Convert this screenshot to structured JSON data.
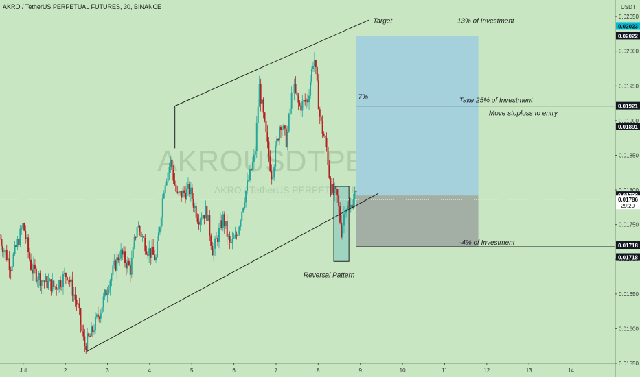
{
  "header": {
    "title": "AKRO / TetherUS PERPETUAL FUTURES, 30, BINANCE",
    "currency": "USDT",
    "watermark_main": "AKROUSDTPERP, 30",
    "watermark_sub": "AKRO / TetherUS PERPETUAL FUTURES"
  },
  "colors": {
    "background": "#c8e6c2",
    "up": "#26a69a",
    "down": "#b22222",
    "target_zone": "#a4d1dc",
    "stop_zone": "#a3afa5",
    "reversal_box": "#9fd4c0",
    "label_bg": "#131722"
  },
  "chart_data": {
    "type": "candlestick",
    "ylim": [
      0.0155,
      0.0206
    ],
    "xlim": [
      0,
      14.6
    ],
    "x_ticks": [
      {
        "x": 0.55,
        "label": "Jul"
      },
      {
        "x": 1.55,
        "label": "2"
      },
      {
        "x": 2.55,
        "label": "3"
      },
      {
        "x": 3.55,
        "label": "4"
      },
      {
        "x": 4.55,
        "label": "5"
      },
      {
        "x": 5.55,
        "label": "6"
      },
      {
        "x": 6.55,
        "label": "7"
      },
      {
        "x": 7.55,
        "label": "8"
      },
      {
        "x": 8.55,
        "label": "9"
      },
      {
        "x": 9.55,
        "label": "10"
      },
      {
        "x": 10.55,
        "label": "11"
      },
      {
        "x": 11.55,
        "label": "12"
      },
      {
        "x": 12.55,
        "label": "13"
      },
      {
        "x": 13.55,
        "label": "14"
      }
    ],
    "y_ticks": [
      "0.01550",
      "0.01600",
      "0.01650",
      "0.01700",
      "0.01750",
      "0.01800",
      "0.01850",
      "0.01900",
      "0.01950",
      "0.02000",
      "0.02050"
    ],
    "price_labels": [
      {
        "value": 0.02023,
        "label": "0.02023",
        "style": "cyan"
      },
      {
        "value": 0.02022,
        "label": "0.02022",
        "style": "dark"
      },
      {
        "value": 0.01921,
        "label": "0.01921",
        "style": "dark"
      },
      {
        "value": 0.01891,
        "label": "0.01891",
        "style": "dark"
      },
      {
        "value": 0.01792,
        "label": "0.01792",
        "style": "dark"
      },
      {
        "value": 0.01786,
        "label": "0.01786",
        "sub": "29:20",
        "style": "white"
      },
      {
        "value": 0.01718,
        "label": "0.01718",
        "style": "dark"
      },
      {
        "value": 0.017175,
        "label": "0.01718",
        "style": "dark"
      }
    ],
    "price_path": [
      [
        0.0,
        0.0173
      ],
      [
        0.25,
        0.0169
      ],
      [
        0.55,
        0.0175
      ],
      [
        0.75,
        0.01685
      ],
      [
        1.0,
        0.0167
      ],
      [
        1.3,
        0.0166
      ],
      [
        1.6,
        0.0168
      ],
      [
        1.85,
        0.0163
      ],
      [
        2.0,
        0.01575
      ],
      [
        2.15,
        0.0159
      ],
      [
        2.4,
        0.0163
      ],
      [
        2.6,
        0.0167
      ],
      [
        2.85,
        0.0171
      ],
      [
        3.1,
        0.01685
      ],
      [
        3.25,
        0.0175
      ],
      [
        3.5,
        0.01715
      ],
      [
        3.7,
        0.017
      ],
      [
        3.9,
        0.0181
      ],
      [
        4.05,
        0.0184
      ],
      [
        4.2,
        0.0179
      ],
      [
        4.5,
        0.018
      ],
      [
        4.7,
        0.0176
      ],
      [
        4.9,
        0.0177
      ],
      [
        5.05,
        0.0171
      ],
      [
        5.3,
        0.0176
      ],
      [
        5.45,
        0.0172
      ],
      [
        5.6,
        0.0173
      ],
      [
        5.8,
        0.0179
      ],
      [
        6.05,
        0.0185
      ],
      [
        6.15,
        0.0195
      ],
      [
        6.35,
        0.0186
      ],
      [
        6.45,
        0.0182
      ],
      [
        6.65,
        0.019
      ],
      [
        6.8,
        0.0187
      ],
      [
        6.95,
        0.0195
      ],
      [
        7.1,
        0.0192
      ],
      [
        7.3,
        0.0193
      ],
      [
        7.45,
        0.01995
      ],
      [
        7.6,
        0.019
      ],
      [
        7.75,
        0.0186
      ],
      [
        7.85,
        0.018
      ],
      [
        8.0,
        0.0179
      ],
      [
        8.1,
        0.0174
      ],
      [
        8.2,
        0.0178
      ],
      [
        8.3,
        0.0177
      ],
      [
        8.4,
        0.01795
      ],
      [
        8.45,
        0.0179
      ]
    ],
    "annotations": {
      "trend_upper": [
        [
          4.15,
          0.01921
        ],
        [
          8.75,
          0.02045
        ]
      ],
      "trend_lower": [
        [
          2.05,
          0.01567
        ],
        [
          8.98,
          0.01795
        ]
      ],
      "target_zone": {
        "x1": 8.45,
        "x2": 11.35,
        "y1": 0.01792,
        "y2": 0.02022
      },
      "stop_zone": {
        "x1": 8.45,
        "x2": 11.35,
        "y1": 0.01718,
        "y2": 0.01792
      },
      "target_line": 0.02022,
      "take_line": 0.01921,
      "stop_line": 0.01718,
      "reversal_box": {
        "x1": 7.92,
        "x2": 8.28,
        "y1": 0.01697,
        "y2": 0.01805
      },
      "labels": {
        "target": "Target",
        "inv13": "13% of Investment",
        "pct7": "7%",
        "take25": "Take 25% of Investment",
        "move_sl": "Move stoploss to entry",
        "neg4": "-4% of Investment",
        "reversal": "Reversal Pattern"
      }
    }
  }
}
